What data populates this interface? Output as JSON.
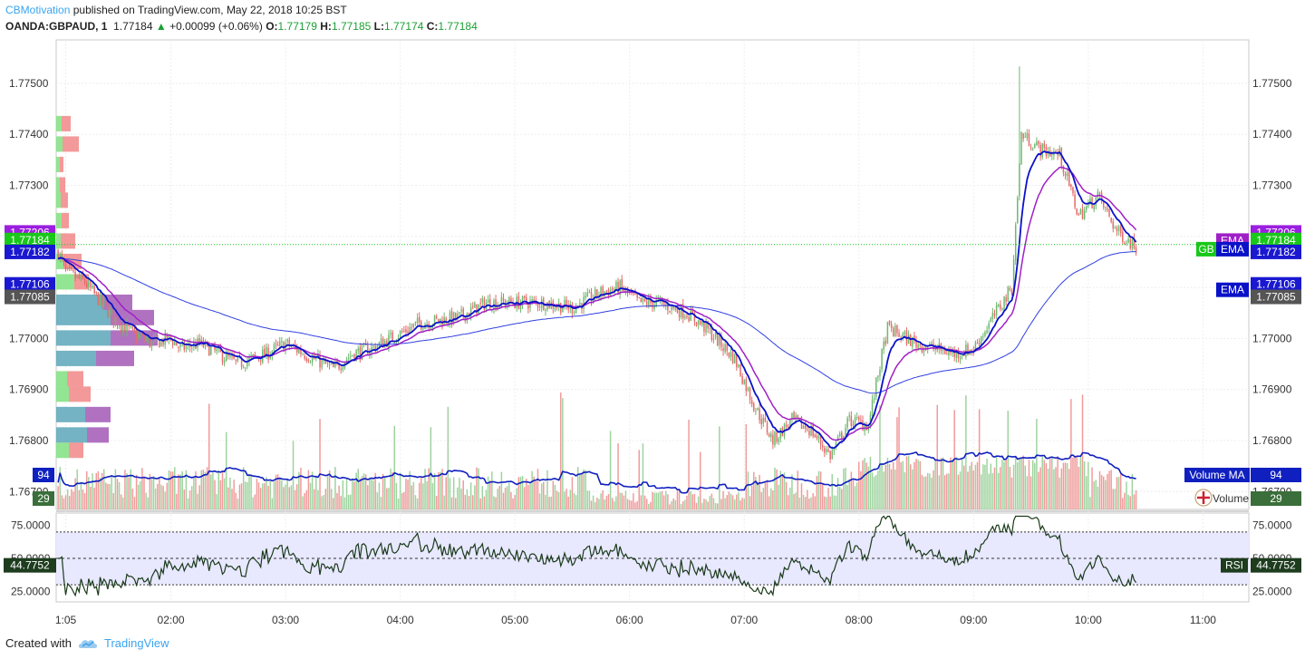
{
  "header": {
    "author": "CBMotivation",
    "published_text": "published on TradingView.com, May 22, 2018 10:25 BST",
    "symbol": "OANDA:GBPAUD, 1",
    "last": "1.77184",
    "change": "+0.00099 (+0.06%)",
    "o_label": "O:",
    "o_val": "1.77179",
    "h_label": "H:",
    "h_val": "1.77185",
    "l_label": "L:",
    "l_val": "1.77174",
    "c_label": "C:",
    "c_val": "1.77184"
  },
  "footer": {
    "created_with": "Created with",
    "brand": "TradingView"
  },
  "colors": {
    "up": "#6fb86f",
    "down": "#e46b6b",
    "ema_fast": "#0a12c8",
    "ema_slow": "#a020c8",
    "ema_long": "#3040e0",
    "volume_ma": "#1020c0",
    "rsi": "#1a3a1a",
    "rsi_band": "#e8e8ff",
    "last_price": "#19c819"
  },
  "chart_data": [
    {
      "type": "candlestick",
      "title": "",
      "y_ticks": [
        "1.77500",
        "1.77400",
        "1.77300",
        "1.77200",
        "1.77100",
        "1.77000",
        "1.76900",
        "1.76800",
        "1.76700"
      ],
      "y_tick_values": [
        1.775,
        1.774,
        1.773,
        1.772,
        1.771,
        1.77,
        1.769,
        1.768,
        1.767
      ],
      "ylim": [
        1.76665,
        1.77585
      ],
      "x_ticks": [
        "1:05",
        "02:00",
        "03:00",
        "04:00",
        "05:00",
        "06:00",
        "07:00",
        "08:00",
        "09:00",
        "10:00",
        "11:00"
      ],
      "x_tick_minutes": [
        65,
        120,
        180,
        240,
        300,
        360,
        420,
        480,
        540,
        600,
        660
      ],
      "xlim_minutes": [
        60,
        684
      ],
      "close_anchors": [
        [
          60,
          1.7718
        ],
        [
          65,
          1.7713
        ],
        [
          75,
          1.7711
        ],
        [
          90,
          1.7704
        ],
        [
          100,
          1.7701
        ],
        [
          110,
          1.7699
        ],
        [
          120,
          1.77
        ],
        [
          125,
          1.7698
        ],
        [
          135,
          1.7699
        ],
        [
          145,
          1.7697
        ],
        [
          155,
          1.7695
        ],
        [
          170,
          1.7697
        ],
        [
          180,
          1.7699
        ],
        [
          195,
          1.7696
        ],
        [
          205,
          1.7694
        ],
        [
          215,
          1.7697
        ],
        [
          225,
          1.7698
        ],
        [
          235,
          1.77
        ],
        [
          250,
          1.7703
        ],
        [
          270,
          1.7704
        ],
        [
          285,
          1.7707
        ],
        [
          300,
          1.7707
        ],
        [
          315,
          1.7707
        ],
        [
          330,
          1.7706
        ],
        [
          345,
          1.7709
        ],
        [
          355,
          1.771
        ],
        [
          365,
          1.7707
        ],
        [
          375,
          1.7707
        ],
        [
          390,
          1.7705
        ],
        [
          400,
          1.7702
        ],
        [
          415,
          1.7696
        ],
        [
          425,
          1.7687
        ],
        [
          435,
          1.768
        ],
        [
          445,
          1.7684
        ],
        [
          455,
          1.7682
        ],
        [
          465,
          1.7677
        ],
        [
          475,
          1.7684
        ],
        [
          485,
          1.7683
        ],
        [
          490,
          1.7693
        ],
        [
          495,
          1.7702
        ],
        [
          505,
          1.77
        ],
        [
          510,
          1.7699
        ],
        [
          520,
          1.7698
        ],
        [
          530,
          1.7697
        ],
        [
          540,
          1.7698
        ],
        [
          550,
          1.7704
        ],
        [
          560,
          1.771
        ],
        [
          565,
          1.774
        ],
        [
          575,
          1.7737
        ],
        [
          585,
          1.7736
        ],
        [
          595,
          1.7724
        ],
        [
          605,
          1.7728
        ],
        [
          615,
          1.7721
        ],
        [
          625,
          1.7718
        ]
      ],
      "ema_label": "EMA",
      "price_tags": [
        {
          "text": "1.77206",
          "value": 1.77206,
          "color": "#9b1fe0"
        },
        {
          "text": "1.77184",
          "value": 1.77184,
          "color": "#19c819"
        },
        {
          "text": "1.77182",
          "value": 1.77182,
          "color": "#1a18d0"
        },
        {
          "text": "1.77106",
          "value": 1.77106,
          "color": "#1a18d0"
        },
        {
          "text": "1.77085",
          "value": 1.77085,
          "color": "#555555"
        }
      ],
      "last_tag": "GB",
      "volume_profile": [
        {
          "price": 1.7742,
          "up": 0.3,
          "down": 0.5
        },
        {
          "price": 1.7738,
          "up": 0.35,
          "down": 0.9
        },
        {
          "price": 1.7734,
          "up": 0.2,
          "down": 0.2
        },
        {
          "price": 1.773,
          "up": 0.2,
          "down": 0.3
        },
        {
          "price": 1.7727,
          "up": 0.25,
          "down": 0.4
        },
        {
          "price": 1.7723,
          "up": 0.3,
          "down": 0.4
        },
        {
          "price": 1.7719,
          "up": 0.25,
          "down": 0.8
        },
        {
          "price": 1.7715,
          "up": 0.4,
          "down": 1.0
        },
        {
          "price": 1.7711,
          "up": 1.0,
          "down": 0.8
        },
        {
          "price": 1.7707,
          "up": 2.6,
          "down": 1.6
        },
        {
          "price": 1.7704,
          "up": 3.0,
          "down": 2.4
        },
        {
          "price": 1.77,
          "up": 3.0,
          "down": 2.6
        },
        {
          "price": 1.7696,
          "up": 2.2,
          "down": 2.1
        },
        {
          "price": 1.7692,
          "up": 0.6,
          "down": 0.9
        },
        {
          "price": 1.7689,
          "up": 0.7,
          "down": 1.2
        },
        {
          "price": 1.7685,
          "up": 1.6,
          "down": 1.4
        },
        {
          "price": 1.7681,
          "up": 1.7,
          "down": 1.2
        },
        {
          "price": 1.7678,
          "up": 0.7,
          "down": 0.8
        }
      ]
    },
    {
      "type": "bar",
      "title": "Volume",
      "series_name": "Volume MA",
      "volume_ma_value": "94",
      "volume_value": "29"
    },
    {
      "type": "line",
      "title": "RSI",
      "rsi_value": "44.7752",
      "y_ticks": [
        "75.0000",
        "50.0000",
        "25.0000"
      ],
      "y_tick_values": [
        75,
        50,
        25
      ],
      "band": [
        30,
        70
      ]
    }
  ]
}
